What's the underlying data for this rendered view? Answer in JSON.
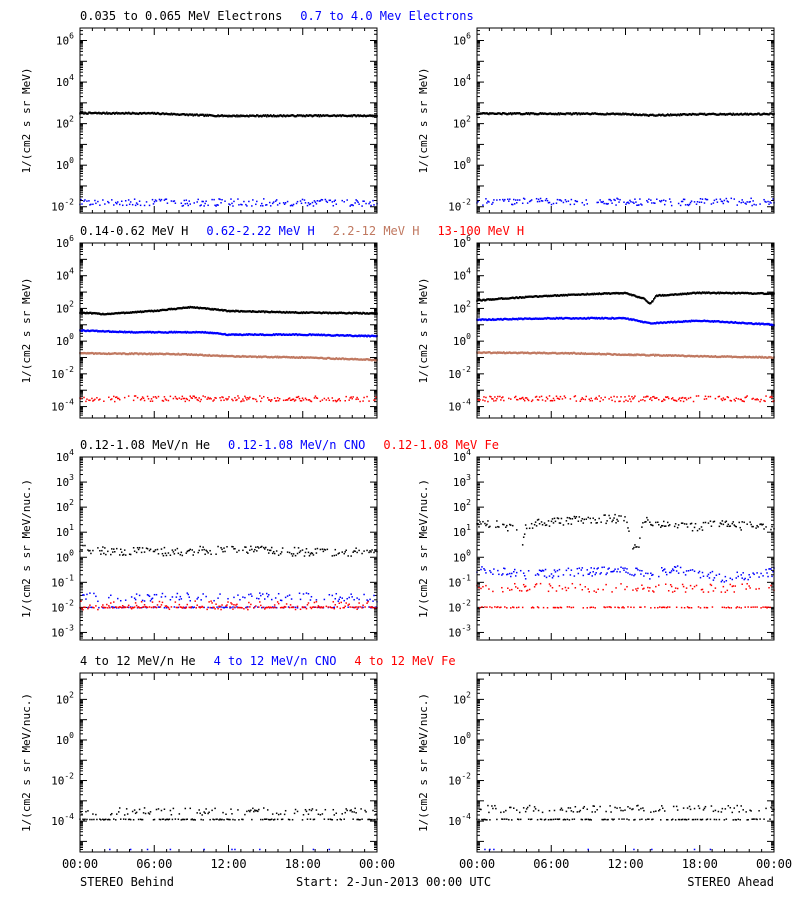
{
  "footer": {
    "left": "STEREO Behind",
    "center": "Start:  2-Jun-2013 00:00 UTC",
    "right": "STEREO Ahead"
  },
  "x_tick_labels": [
    "00:00",
    "06:00",
    "12:00",
    "18:00",
    "00:00"
  ],
  "colors": {
    "black": "#000000",
    "blue": "#0000ff",
    "tan": "#c07860",
    "red": "#ff0000"
  },
  "chart_data": [
    {
      "type": "scatter",
      "row": 0,
      "panel_title": "Electrons",
      "legend": [
        {
          "text": "0.035 to 0.065 MeV Electrons",
          "color": "#000000"
        },
        {
          "text": "0.7 to 4.0 Mev Electrons",
          "color": "#0000ff"
        }
      ],
      "ylabel": "1/(cm2 s sr MeV)",
      "yscale": "log",
      "ylim": [
        0.005,
        4000000
      ],
      "y_tick_exponents": [
        -2,
        0,
        2,
        4,
        6
      ],
      "x": "hours since 2-Jun-2013 00:00 UTC",
      "xlim": [
        0,
        24
      ],
      "panels": [
        {
          "name": "STEREO Behind",
          "series": [
            {
              "label": "0.035 to 0.065 MeV Electrons",
              "color": "#000000",
              "style": "line",
              "knots": [
                [
                  0,
                  320
                ],
                [
                  6,
                  310
                ],
                [
                  10,
                  250
                ],
                [
                  12,
                  235
                ],
                [
                  18,
                  240
                ],
                [
                  24,
                  240
                ]
              ]
            },
            {
              "label": "0.7 to 4.0 Mev Electrons",
              "color": "#0000ff",
              "style": "dots",
              "level": 0.016
            }
          ]
        },
        {
          "name": "STEREO Ahead",
          "series": [
            {
              "label": "0.035 to 0.065 MeV Electrons",
              "color": "#000000",
              "style": "line",
              "knots": [
                [
                  0,
                  300
                ],
                [
                  6,
                  300
                ],
                [
                  12,
                  290
                ],
                [
                  14,
                  250
                ],
                [
                  18,
                  280
                ],
                [
                  24,
                  290
                ]
              ]
            },
            {
              "label": "0.7 to 4.0 Mev Electrons",
              "color": "#0000ff",
              "style": "dots",
              "level": 0.017
            }
          ]
        }
      ]
    },
    {
      "type": "scatter",
      "row": 1,
      "panel_title": "Protons",
      "legend": [
        {
          "text": "0.14-0.62 MeV H",
          "color": "#000000"
        },
        {
          "text": "0.62-2.22 MeV H",
          "color": "#0000ff"
        },
        {
          "text": "2.2-12 MeV H",
          "color": "#c07860"
        },
        {
          "text": "13-100 MeV H",
          "color": "#ff0000"
        }
      ],
      "ylabel": "1/(cm2 s sr MeV)",
      "yscale": "log",
      "ylim": [
        2e-05,
        1000000
      ],
      "y_tick_exponents": [
        -4,
        -2,
        0,
        2,
        4,
        6
      ],
      "x": "hours since 2-Jun-2013 00:00 UTC",
      "xlim": [
        0,
        24
      ],
      "panels": [
        {
          "name": "STEREO Behind",
          "series": [
            {
              "label": "0.14-0.62 MeV H",
              "color": "#000000",
              "style": "line",
              "knots": [
                [
                  0,
                  55
                ],
                [
                  2,
                  45
                ],
                [
                  6,
                  70
                ],
                [
                  9,
                  120
                ],
                [
                  12,
                  70
                ],
                [
                  18,
                  55
                ],
                [
                  24,
                  50
                ]
              ]
            },
            {
              "label": "0.62-2.22 MeV H",
              "color": "#0000ff",
              "style": "line",
              "knots": [
                [
                  0,
                  4.5
                ],
                [
                  4,
                  3.5
                ],
                [
                  10,
                  3.5
                ],
                [
                  12,
                  2.5
                ],
                [
                  18,
                  2.5
                ],
                [
                  24,
                  2
                ]
              ]
            },
            {
              "label": "2.2-12 MeV H",
              "color": "#c07860",
              "style": "line",
              "knots": [
                [
                  0,
                  0.18
                ],
                [
                  8,
                  0.16
                ],
                [
                  12,
                  0.12
                ],
                [
                  18,
                  0.1
                ],
                [
                  24,
                  0.07
                ]
              ]
            },
            {
              "label": "13-100 MeV H",
              "color": "#ff0000",
              "style": "dots",
              "level": 0.0003
            }
          ]
        },
        {
          "name": "STEREO Ahead",
          "series": [
            {
              "label": "0.14-0.62 MeV H",
              "color": "#000000",
              "style": "line",
              "knots": [
                [
                  0,
                  300
                ],
                [
                  2,
                  400
                ],
                [
                  6,
                  600
                ],
                [
                  10,
                  800
                ],
                [
                  12,
                  850
                ],
                [
                  13.5,
                  400
                ],
                [
                  14,
                  180
                ],
                [
                  14.5,
                  600
                ],
                [
                  18,
                  900
                ],
                [
                  24,
                  800
                ]
              ]
            },
            {
              "label": "0.62-2.22 MeV H",
              "color": "#0000ff",
              "style": "line",
              "knots": [
                [
                  0,
                  20
                ],
                [
                  6,
                  25
                ],
                [
                  12,
                  25
                ],
                [
                  14,
                  12
                ],
                [
                  18,
                  18
                ],
                [
                  20,
                  15
                ],
                [
                  24,
                  10
                ]
              ]
            },
            {
              "label": "2.2-12 MeV H",
              "color": "#c07860",
              "style": "line",
              "knots": [
                [
                  0,
                  0.2
                ],
                [
                  8,
                  0.18
                ],
                [
                  12,
                  0.15
                ],
                [
                  18,
                  0.12
                ],
                [
                  24,
                  0.1
                ]
              ]
            },
            {
              "label": "13-100 MeV H",
              "color": "#ff0000",
              "style": "dots",
              "level": 0.0003
            }
          ]
        }
      ]
    },
    {
      "type": "scatter",
      "row": 2,
      "panel_title": "Low energy ions",
      "legend": [
        {
          "text": "0.12-1.08 MeV/n He",
          "color": "#000000"
        },
        {
          "text": "0.12-1.08 MeV/n CNO",
          "color": "#0000ff"
        },
        {
          "text": "0.12-1.08 MeV Fe",
          "color": "#ff0000"
        }
      ],
      "ylabel": "1/(cm2 s sr MeV/nuc.)",
      "yscale": "log",
      "ylim": [
        0.0005,
        10000
      ],
      "y_tick_exponents": [
        -3,
        -2,
        -1,
        0,
        1,
        2,
        3,
        4
      ],
      "x": "hours since 2-Jun-2013 00:00 UTC",
      "xlim": [
        0,
        24
      ],
      "panels": [
        {
          "name": "STEREO Behind",
          "series": [
            {
              "label": "0.12-1.08 MeV/n He",
              "color": "#000000",
              "style": "dots",
              "knots": [
                [
                  0,
                  2
                ],
                [
                  6,
                  1.6
                ],
                [
                  12,
                  2
                ],
                [
                  18,
                  1.6
                ],
                [
                  24,
                  1.6
                ]
              ]
            },
            {
              "label": "0.12-1.08 MeV/n CNO",
              "color": "#0000ff",
              "style": "floor",
              "level": 0.025,
              "floor": 0.01
            },
            {
              "label": "0.12-1.08 MeV Fe",
              "color": "#ff0000",
              "style": "floor",
              "level": 0.012,
              "floor": 0.01
            }
          ]
        },
        {
          "name": "STEREO Ahead",
          "series": [
            {
              "label": "0.12-1.08 MeV/n He",
              "color": "#000000",
              "style": "dots",
              "knots": [
                [
                  0,
                  25
                ],
                [
                  3,
                  15
                ],
                [
                  3.6,
                  3
                ],
                [
                  4,
                  20
                ],
                [
                  8,
                  30
                ],
                [
                  12,
                  35
                ],
                [
                  12.5,
                  3
                ],
                [
                  13,
                  2
                ],
                [
                  13.5,
                  30
                ],
                [
                  16,
                  15
                ],
                [
                  20,
                  20
                ],
                [
                  24,
                  15
                ]
              ]
            },
            {
              "label": "0.12-1.08 MeV/n CNO",
              "color": "#0000ff",
              "style": "dots",
              "knots": [
                [
                  0,
                  0.35
                ],
                [
                  4,
                  0.2
                ],
                [
                  8,
                  0.25
                ],
                [
                  12,
                  0.3
                ],
                [
                  14,
                  0.2
                ],
                [
                  16,
                  0.35
                ],
                [
                  20,
                  0.15
                ],
                [
                  24,
                  0.25
                ]
              ]
            },
            {
              "label": "0.12-1.08 MeV Fe",
              "color": "#ff0000",
              "style": "floor",
              "level": 0.06,
              "floor": 0.01
            }
          ]
        }
      ]
    },
    {
      "type": "scatter",
      "row": 3,
      "panel_title": "High energy ions",
      "legend": [
        {
          "text": "4 to 12 MeV/n He",
          "color": "#000000"
        },
        {
          "text": "4 to 12 MeV/n CNO",
          "color": "#0000ff"
        },
        {
          "text": "4 to 12 MeV Fe",
          "color": "#ff0000"
        }
      ],
      "ylabel": "1/(cm2 s sr MeV/nuc.)",
      "yscale": "log",
      "ylim": [
        3e-06,
        2000
      ],
      "y_tick_exponents": [
        -4,
        -2,
        0,
        2
      ],
      "x": "hours since 2-Jun-2013 00:00 UTC",
      "xlim": [
        0,
        24
      ],
      "panels": [
        {
          "name": "STEREO Behind",
          "series": [
            {
              "label": "4 to 12 MeV/n He",
              "color": "#000000",
              "style": "floor",
              "level": 0.0003,
              "floor": 0.00012
            },
            {
              "label": "4 to 12 MeV/n CNO",
              "color": "#0000ff",
              "style": "sparse",
              "level": 4e-06
            }
          ]
        },
        {
          "name": "STEREO Ahead",
          "series": [
            {
              "label": "4 to 12 MeV/n He",
              "color": "#000000",
              "style": "floor",
              "level": 0.0004,
              "floor": 0.00012
            },
            {
              "label": "4 to 12 MeV/n CNO",
              "color": "#0000ff",
              "style": "sparse",
              "level": 4e-06
            }
          ]
        }
      ]
    }
  ]
}
